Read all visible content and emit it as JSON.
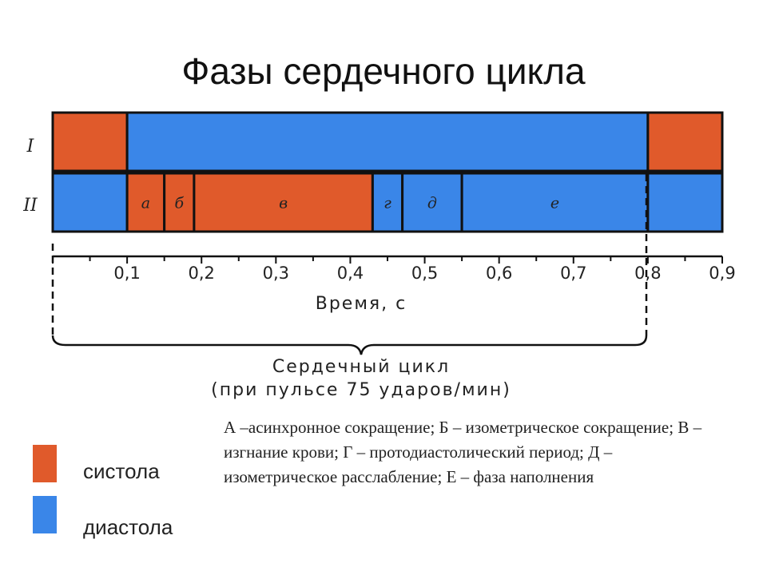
{
  "title": "Фазы сердечного цикла",
  "colors": {
    "systole": "#e05a2b",
    "diastole": "#3a86e8",
    "outline": "#111111"
  },
  "rows": [
    {
      "label": "I",
      "segments": [
        {
          "start": 0.0,
          "end": 0.1,
          "phase": "systole",
          "label": ""
        },
        {
          "start": 0.1,
          "end": 0.8,
          "phase": "diastole",
          "label": ""
        },
        {
          "start": 0.8,
          "end": 0.9,
          "phase": "systole",
          "label": ""
        }
      ]
    },
    {
      "label": "II",
      "segments": [
        {
          "start": 0.0,
          "end": 0.1,
          "phase": "diastole",
          "label": ""
        },
        {
          "start": 0.1,
          "end": 0.15,
          "phase": "systole",
          "label": "а"
        },
        {
          "start": 0.15,
          "end": 0.19,
          "phase": "systole",
          "label": "б"
        },
        {
          "start": 0.19,
          "end": 0.43,
          "phase": "systole",
          "label": "в"
        },
        {
          "start": 0.43,
          "end": 0.47,
          "phase": "diastole",
          "label": "г"
        },
        {
          "start": 0.47,
          "end": 0.55,
          "phase": "diastole",
          "label": "д"
        },
        {
          "start": 0.55,
          "end": 0.8,
          "phase": "diastole",
          "label": "е"
        },
        {
          "start": 0.8,
          "end": 0.9,
          "phase": "diastole",
          "label": ""
        }
      ]
    }
  ],
  "axis": {
    "min": 0,
    "max": 0.9,
    "ticks": [
      "0,1",
      "0,2",
      "0,3",
      "0,4",
      "0,5",
      "0,6",
      "0,7",
      "0,8",
      "0,9"
    ],
    "title": "Время, с"
  },
  "cycle": {
    "line1": "Сердечный цикл",
    "line2": "(при пульсе 75 ударов/мин)"
  },
  "legend": {
    "systole": "систола",
    "diastole": "диастола"
  },
  "description": "А –асинхронное сокращение; Б – изометрическое сокращение; В – изгнание крови; Г – протодиастолический период; Д – изометрическое расслабление; Е – фаза наполнения"
}
